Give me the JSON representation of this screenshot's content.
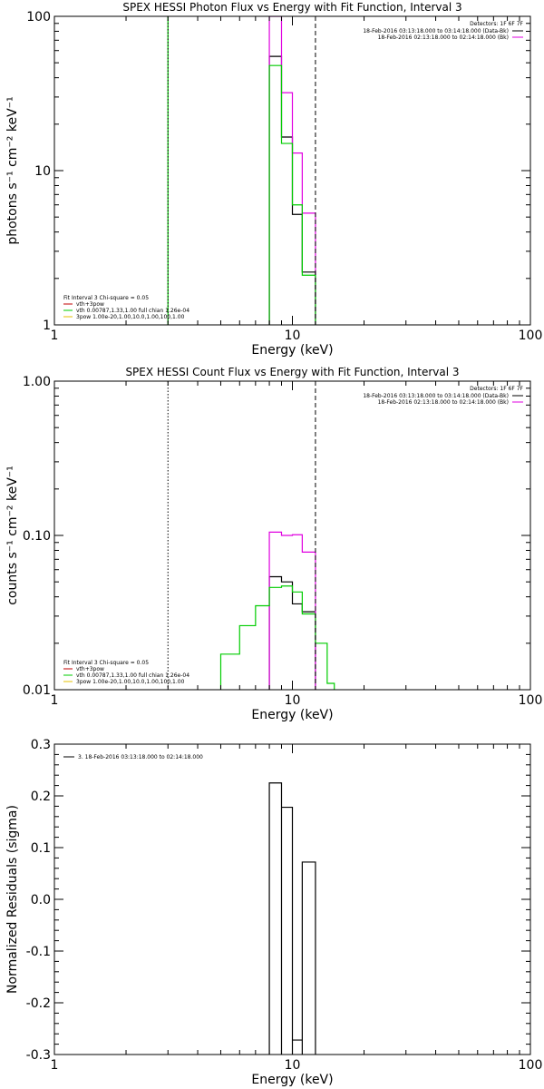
{
  "chart_data": [
    {
      "type": "line",
      "title": "SPEX HESSI Photon Flux vs Energy with Fit Function, Interval 3",
      "xlabel": "Energy (keV)",
      "ylabel": "photons s⁻¹ cm⁻² keV⁻¹",
      "xscale": "log",
      "yscale": "log",
      "xlim": [
        1,
        100
      ],
      "ylim": [
        1,
        100
      ],
      "xticks": [
        {
          "v": 1,
          "label": "1"
        },
        {
          "v": 10,
          "label": "10"
        },
        {
          "v": 100,
          "label": "100"
        }
      ],
      "yticks": [
        {
          "v": 1,
          "label": "1"
        },
        {
          "v": 10,
          "label": "10"
        },
        {
          "v": 100,
          "label": "100"
        }
      ],
      "vlines": [
        {
          "x": 3.0,
          "style": "dotted",
          "color": "#000000"
        },
        {
          "x": 12.5,
          "style": "dashed",
          "color": "#000000"
        }
      ],
      "legend_top": {
        "detectors": "Detectors: 1F 6F 7F",
        "entries": [
          {
            "label": "18-Feb-2016 03:13:18.000 to 03:14:18.000 (Data-Bk)",
            "color": "#000000"
          },
          {
            "label": "18-Feb-2016 02:13:18.000 to 02:14:18.000 (Bk)",
            "color": "#e000e0"
          }
        ]
      },
      "legend_bottom": {
        "header": "Fit Interval 3   Chi-square = 0.05",
        "entries": [
          {
            "label": "vth+3pow",
            "color": "#c00000"
          },
          {
            "label": "vth 0.00787,1.33,1.00   full chian 1.26e-04",
            "color": "#00cc00"
          },
          {
            "label": "3pow 1.00e-20,1.00,10.0,1.00,100,1.00",
            "color": "#e6c000"
          }
        ]
      },
      "series": [
        {
          "color": "#000000",
          "edges": [
            8.0,
            9.0,
            10.0,
            11.0,
            12.5
          ],
          "values": [
            55,
            16.5,
            5.2,
            2.2
          ]
        },
        {
          "color": "#e000e0",
          "edges": [
            8.0,
            9.0,
            10.0,
            11.0,
            12.5
          ],
          "values": [
            100,
            32,
            13,
            5.3
          ]
        },
        {
          "color": "#00cc00",
          "edges": [
            8.0,
            9.0,
            10.0,
            11.0,
            12.5
          ],
          "values": [
            48,
            15,
            6.0,
            2.1
          ]
        },
        {
          "color": "#00cc00",
          "edges": [
            3.0,
            3.0
          ],
          "values": [
            100
          ],
          "vertical": true
        }
      ]
    },
    {
      "type": "line",
      "title": "SPEX HESSI Count Flux vs Energy with Fit Function, Interval 3",
      "xlabel": "Energy (keV)",
      "ylabel": "counts s⁻¹ cm⁻² keV⁻¹",
      "xscale": "log",
      "yscale": "log",
      "xlim": [
        1,
        100
      ],
      "ylim": [
        0.01,
        1.0
      ],
      "xticks": [
        {
          "v": 1,
          "label": "1"
        },
        {
          "v": 10,
          "label": "10"
        },
        {
          "v": 100,
          "label": "100"
        }
      ],
      "yticks": [
        {
          "v": 0.01,
          "label": "0.01"
        },
        {
          "v": 0.1,
          "label": "0.10"
        },
        {
          "v": 1.0,
          "label": "1.00"
        }
      ],
      "vlines": [
        {
          "x": 3.0,
          "style": "dotted",
          "color": "#000000"
        },
        {
          "x": 12.5,
          "style": "dashed",
          "color": "#000000"
        }
      ],
      "legend_top": {
        "detectors": "Detectors: 1F 6F 7F",
        "entries": [
          {
            "label": "18-Feb-2016 03:13:18.000 to 03:14:18.000 (Data-Bk)",
            "color": "#000000"
          },
          {
            "label": "18-Feb-2016 02:13:18.000 to 02:14:18.000 (Bk)",
            "color": "#e000e0"
          }
        ]
      },
      "legend_bottom": {
        "header": "Fit Interval 3   Chi-square = 0.05",
        "entries": [
          {
            "label": "vth+3pow",
            "color": "#c00000"
          },
          {
            "label": "vth 0.00787,1.33,1.00   full chian 1.26e-04",
            "color": "#00cc00"
          },
          {
            "label": "3pow 1.00e-20,1.00,10.0,1.00,100,1.00",
            "color": "#e6c000"
          }
        ]
      },
      "series": [
        {
          "color": "#000000",
          "edges": [
            8.0,
            9.0,
            10.0,
            11.0,
            12.5
          ],
          "values": [
            0.054,
            0.05,
            0.036,
            0.032
          ]
        },
        {
          "color": "#e000e0",
          "edges": [
            8.0,
            9.0,
            10.0,
            11.0,
            12.5
          ],
          "values": [
            0.105,
            0.1,
            0.101,
            0.078
          ]
        },
        {
          "color": "#00cc00",
          "edges": [
            5.0,
            6.0,
            7.0,
            8.0,
            9.0,
            10.0,
            11.0,
            12.5,
            14.0,
            15.0
          ],
          "values": [
            0.017,
            0.026,
            0.035,
            0.046,
            0.047,
            0.043,
            0.031,
            0.02,
            0.011
          ]
        }
      ]
    },
    {
      "type": "line",
      "title": "",
      "xlabel": "Energy (keV)",
      "ylabel": "Normalized Residuals (sigma)",
      "xscale": "log",
      "yscale": "linear",
      "xlim": [
        1,
        100
      ],
      "ylim": [
        -0.3,
        0.3
      ],
      "xticks": [
        {
          "v": 1,
          "label": "1"
        },
        {
          "v": 10,
          "label": "10"
        },
        {
          "v": 100,
          "label": "100"
        }
      ],
      "yticks": [
        {
          "v": -0.3,
          "label": "-0.3"
        },
        {
          "v": -0.2,
          "label": "-0.2"
        },
        {
          "v": -0.1,
          "label": "-0.1"
        },
        {
          "v": 0.0,
          "label": "0.0"
        },
        {
          "v": 0.1,
          "label": "0.1"
        },
        {
          "v": 0.2,
          "label": "0.2"
        },
        {
          "v": 0.3,
          "label": "0.3"
        }
      ],
      "vlines": [],
      "legend_top": {
        "detectors": "",
        "entries": [
          {
            "label": "3. 18-Feb-2016 03:13:18.000 to 02:14:18.000",
            "color": "#000000"
          }
        ]
      },
      "legend_bottom": {
        "header": "",
        "entries": []
      },
      "series": [
        {
          "color": "#000000",
          "edges": [
            8.0,
            9.0,
            10.0,
            11.0,
            12.5
          ],
          "values": [
            0.225,
            0.178,
            -0.272,
            0.072
          ],
          "residual": true
        }
      ]
    }
  ]
}
